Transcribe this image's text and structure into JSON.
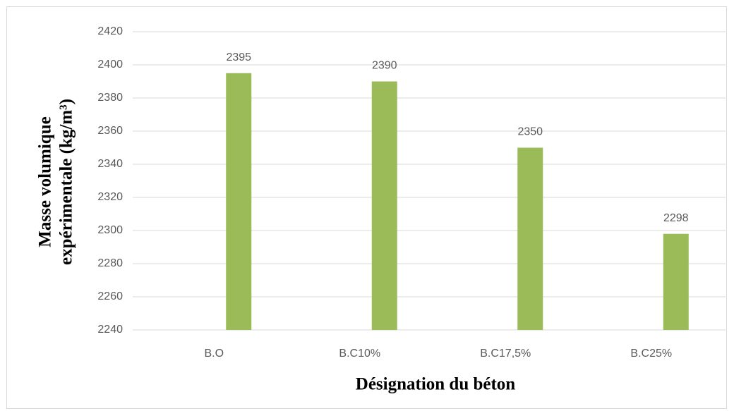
{
  "chart_data": {
    "type": "bar",
    "x_label": "Désignation du béton",
    "y_label": [
      "Masse volumique",
      "expérimentale (kg/m³)"
    ],
    "categories": [
      "B.O",
      "B.C10%",
      "B.C17,5%",
      "B.C25%"
    ],
    "values": [
      2395,
      2390,
      2350,
      2298
    ],
    "color": "#9bbb59",
    "ylim": [
      2240,
      2420
    ],
    "yticks": [
      2240,
      2260,
      2280,
      2300,
      2320,
      2340,
      2360,
      2380,
      2400,
      2420
    ],
    "grid": true
  }
}
